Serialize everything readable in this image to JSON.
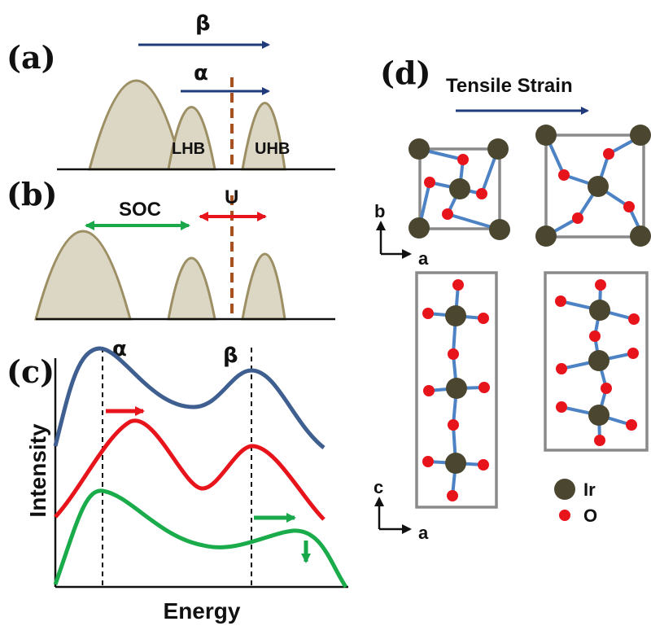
{
  "panels": {
    "a": {
      "label": "(a)",
      "alpha": "α",
      "beta": "β",
      "lhb": "LHB",
      "uhb": "UHB"
    },
    "b": {
      "label": "(b)",
      "soc": "SOC",
      "u": "U"
    },
    "c": {
      "label": "(c)",
      "alpha": "α",
      "beta": "β",
      "xlabel": "Energy",
      "ylabel": "Intensity"
    },
    "d": {
      "label": "(d)",
      "strain": "Tensile Strain",
      "axis_b": "b",
      "axis_c": "c",
      "axis_a1": "a",
      "axis_a2": "a",
      "legend_ir": "Ir",
      "legend_o": "O"
    }
  },
  "colors": {
    "band_fill": "#dcd6c4",
    "band_edge": "#9d8f64",
    "fermi": "#a8501f",
    "arrow_navy": "#1f3b7a",
    "arrow_green": "#1aa84b",
    "arrow_red": "#e8141c",
    "curve_blue": "#3e5f8f",
    "curve_red": "#e8141c",
    "curve_green": "#1aab4a",
    "ir": "#4a4630",
    "o": "#e8141c",
    "bond": "#4d83c4"
  },
  "icons": {
    "ir_atom": "dark-olive-circle",
    "o_atom": "red-circle"
  }
}
